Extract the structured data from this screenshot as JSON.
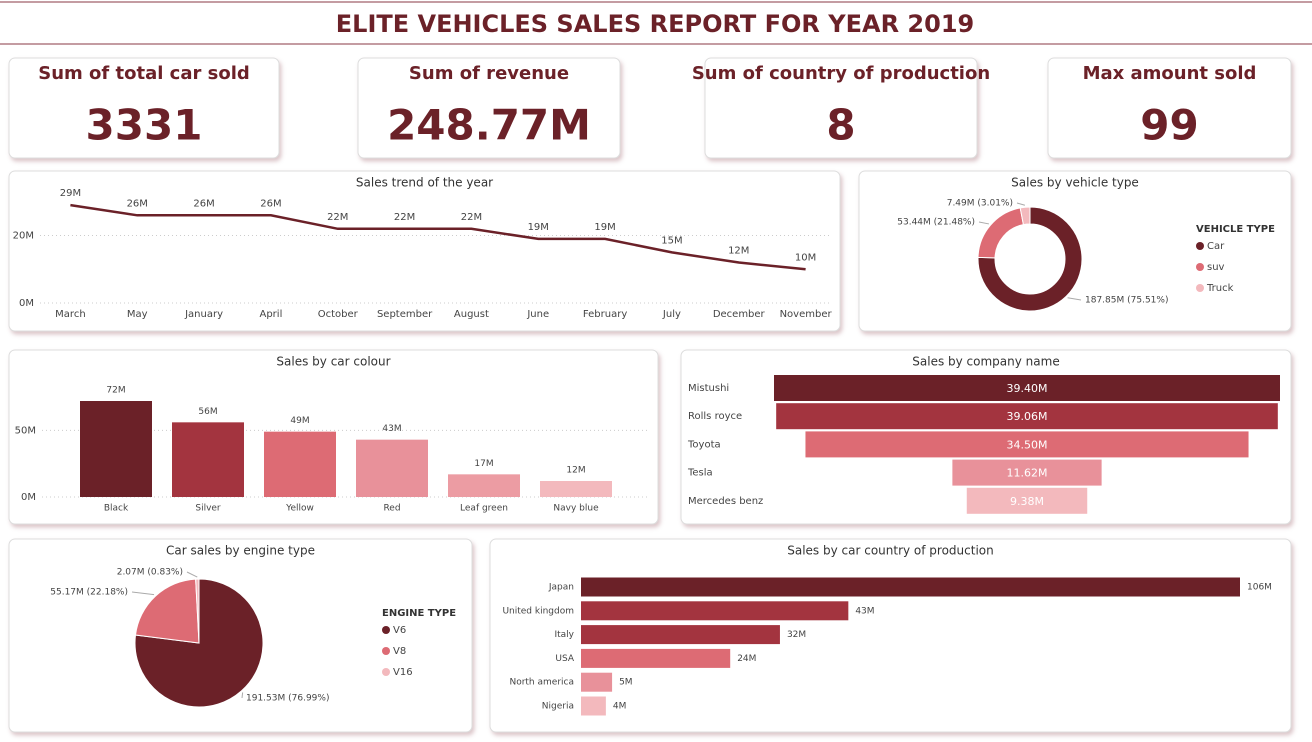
{
  "header": {
    "title": "ELITE VEHICLES SALES REPORT FOR YEAR 2019"
  },
  "kpis": [
    {
      "label": "Sum of total car sold",
      "value": 3331
    },
    {
      "label": "Sum of revenue",
      "value": "248.77M"
    },
    {
      "label": "Sum of country of production",
      "value": 8
    },
    {
      "label": "Max amount sold",
      "value": 99
    }
  ],
  "chart_data": [
    {
      "type": "line",
      "title": "Sales trend of the year",
      "color": "#6b2128",
      "grid": true,
      "categories": [
        "March",
        "May",
        "January",
        "April",
        "October",
        "September",
        "August",
        "June",
        "February",
        "July",
        "December",
        "November"
      ],
      "values": [
        29,
        26,
        26,
        26,
        22,
        22,
        22,
        19,
        19,
        15,
        12,
        10
      ],
      "value_labels": [
        "29M",
        "26M",
        "26M",
        "26M",
        "22M",
        "22M",
        "22M",
        "19M",
        "19M",
        "15M",
        "12M",
        "10M"
      ],
      "ylim": [
        0,
        32
      ],
      "yticks": [
        {
          "value": 0,
          "label": "0M"
        },
        {
          "value": 20,
          "label": "20M"
        }
      ]
    },
    {
      "type": "donut",
      "title": "Sales by vehicle type",
      "legend_title": "VEHICLE TYPE",
      "legend": "right",
      "categories": [
        "Car",
        "suv",
        "Truck"
      ],
      "values": [
        187.85,
        53.44,
        7.49
      ],
      "value_labels": [
        "187.85M (75.51%)",
        "53.44M (21.48%)",
        "7.49M (3.01%)"
      ],
      "colors": [
        "#6b2128",
        "#dd6b74",
        "#f3b9bd"
      ]
    },
    {
      "type": "bar",
      "title": "Sales by car colour",
      "grid": true,
      "categories": [
        "Black",
        "Silver",
        "Yellow",
        "Red",
        "Leaf green",
        "Navy blue"
      ],
      "values": [
        72,
        56,
        49,
        43,
        17,
        12
      ],
      "value_labels": [
        "72M",
        "56M",
        "49M",
        "43M",
        "17M",
        "12M"
      ],
      "colors": [
        "#6b2128",
        "#a3343f",
        "#dd6b74",
        "#e8919a",
        "#ec9ca3",
        "#f3b9bd"
      ],
      "ylim": [
        0,
        84
      ],
      "yticks": [
        {
          "value": 0,
          "label": "0M"
        },
        {
          "value": 50,
          "label": "50M"
        }
      ]
    },
    {
      "type": "funnel",
      "title": "Sales by company name",
      "categories": [
        "Mistushi",
        "Rolls royce",
        "Toyota",
        "Tesla",
        "Mercedes benz"
      ],
      "values": [
        39.4,
        39.06,
        34.5,
        11.62,
        9.38
      ],
      "value_labels": [
        "39.40M",
        "39.06M",
        "34.50M",
        "11.62M",
        "9.38M"
      ],
      "colors": [
        "#6b2128",
        "#a3343f",
        "#dd6b74",
        "#e8919a",
        "#f3b9bd"
      ]
    },
    {
      "type": "pie",
      "title": "Car sales by engine type",
      "legend_title": "ENGINE TYPE",
      "legend": "right",
      "categories": [
        "V6",
        "V8",
        "V16"
      ],
      "values": [
        191.53,
        55.17,
        2.07
      ],
      "value_labels": [
        "191.53M (76.99%)",
        "55.17M (22.18%)",
        "2.07M (0.83%)"
      ],
      "colors": [
        "#6b2128",
        "#dd6b74",
        "#f3b9bd"
      ]
    },
    {
      "type": "bar",
      "horizontal": true,
      "title": "Sales by car country of production",
      "categories": [
        "Japan",
        "United kingdom",
        "Italy",
        "USA",
        "North america",
        "Nigeria"
      ],
      "values": [
        106,
        43,
        32,
        24,
        5,
        4
      ],
      "value_labels": [
        "106M",
        "43M",
        "32M",
        "24M",
        "5M",
        "4M"
      ],
      "colors": [
        "#6b2128",
        "#a3343f",
        "#a3343f",
        "#dd6b74",
        "#e8919a",
        "#f3b9bd"
      ]
    }
  ]
}
